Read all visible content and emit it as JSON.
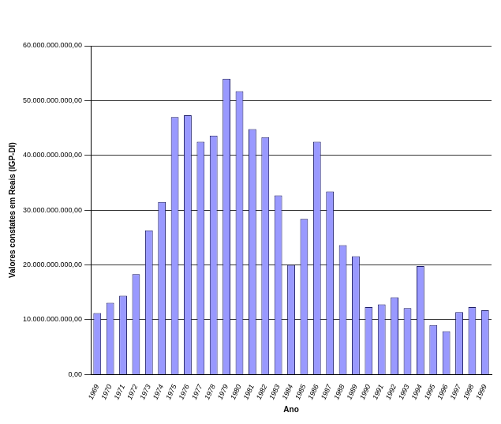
{
  "chart_data": {
    "type": "bar",
    "x_label": "Ano",
    "y_label": "Valores constates em Reais (IGP-DI)",
    "categories": [
      "1969",
      "1970",
      "1971",
      "1972",
      "1973",
      "1974",
      "1975",
      "1976",
      "1977",
      "1978",
      "1979",
      "1980",
      "1981",
      "1982",
      "1983",
      "1984",
      "1985",
      "1986",
      "1987",
      "1988",
      "1989",
      "1990",
      "1991",
      "1992",
      "1993",
      "1994",
      "1995",
      "1996",
      "1997",
      "1998",
      "1999"
    ],
    "values": [
      11200000000,
      13100000000,
      14400000000,
      18300000000,
      26300000000,
      31500000000,
      47000000000,
      47300000000,
      42500000000,
      43600000000,
      54000000000,
      51700000000,
      44800000000,
      43300000000,
      32700000000,
      20000000000,
      28400000000,
      42500000000,
      33400000000,
      23600000000,
      21600000000,
      12300000000,
      12800000000,
      14100000000,
      12100000000,
      19800000000,
      9000000000,
      7900000000,
      11400000000,
      12300000000,
      11700000000
    ],
    "color": "#9999ff",
    "ylim": [
      0,
      60000000000
    ],
    "yticks": [
      {
        "value": 0,
        "label": "0,00"
      },
      {
        "value": 10000000000,
        "label": "10.000.000.000,00"
      },
      {
        "value": 20000000000,
        "label": "20.000.000.000,00"
      },
      {
        "value": 30000000000,
        "label": "30.000.000.000,00"
      },
      {
        "value": 40000000000,
        "label": "40.000.000.000,00"
      },
      {
        "value": 50000000000,
        "label": "50.000.000.000,00"
      },
      {
        "value": 60000000000,
        "label": "60.000.000.000,00"
      }
    ],
    "grid": true
  }
}
